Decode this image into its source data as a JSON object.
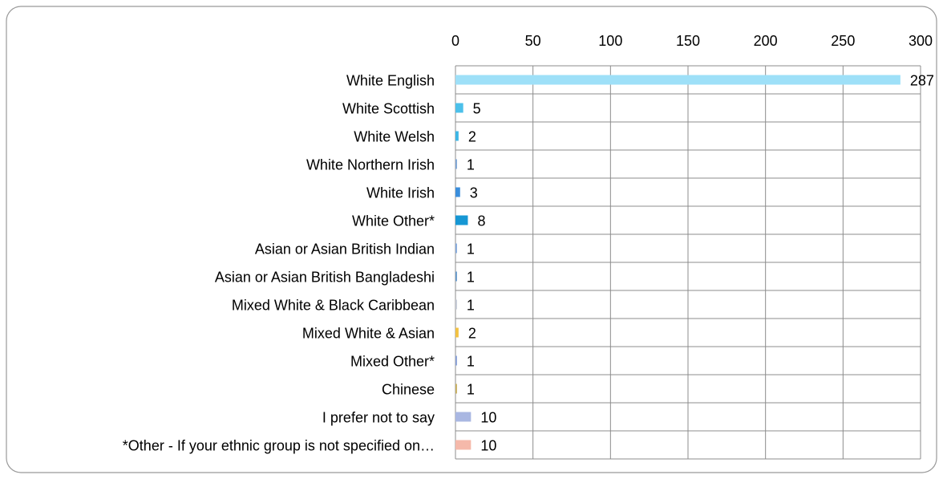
{
  "chart_data": {
    "type": "barh",
    "categories": [
      "White English",
      "White Scottish",
      "White Welsh",
      "White Northern Irish",
      "White Irish",
      "White Other*",
      "Asian or Asian British Indian",
      "Asian or Asian British Bangladeshi",
      "Mixed White & Black Caribbean",
      "Mixed White & Asian",
      "Mixed Other*",
      "Chinese",
      "I prefer not to say",
      "*Other - If your ethnic group is not specified on…"
    ],
    "values": [
      287,
      5,
      2,
      1,
      3,
      8,
      1,
      1,
      1,
      2,
      1,
      1,
      10,
      10
    ],
    "colors": [
      "#9ee0f8",
      "#4cc0ea",
      "#3cb6e6",
      "#7fa6d6",
      "#3a8edc",
      "#1697d4",
      "#86aadc",
      "#6a9ccc",
      "#c4cad6",
      "#f3c140",
      "#8aa2d8",
      "#c9b062",
      "#a9b7e2",
      "#f5b9aa"
    ],
    "xlim": [
      0,
      300
    ],
    "xticks": [
      0,
      50,
      100,
      150,
      200,
      250,
      300
    ],
    "grid": true
  }
}
